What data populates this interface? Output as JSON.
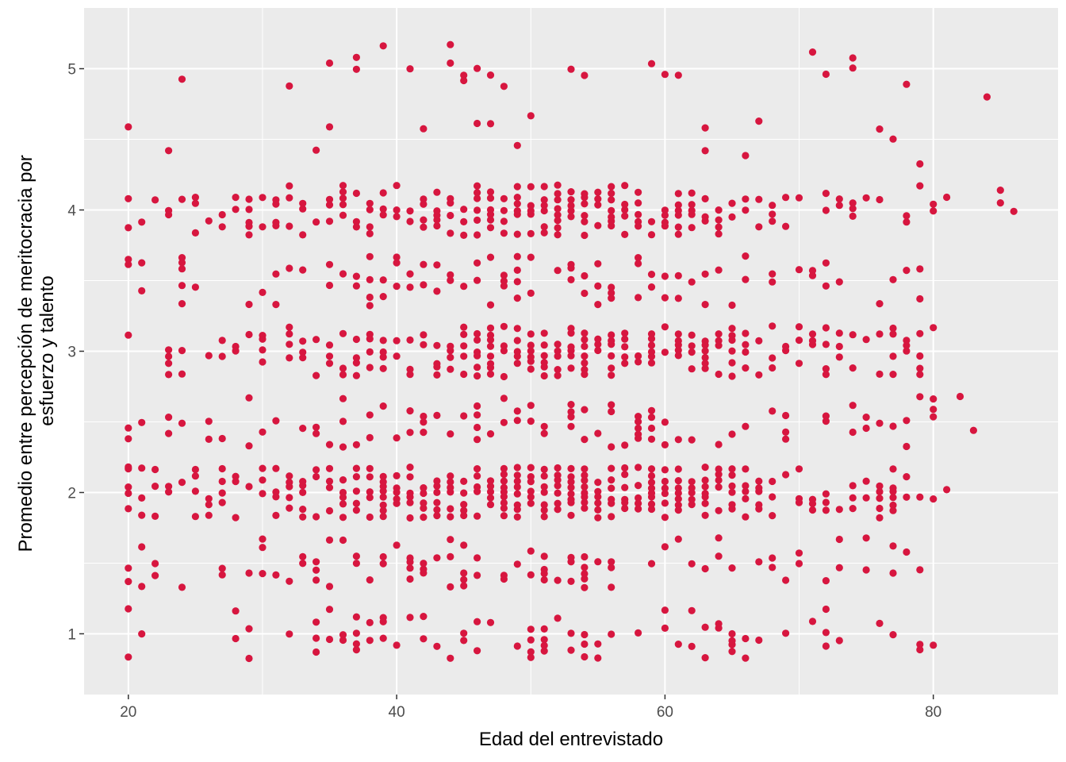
{
  "chart_data": {
    "type": "scatter",
    "title": "",
    "xlabel": "Edad del entrevistado",
    "ylabel_lines": [
      "Promedio entre percepción de meritocracia por",
      "esfuerzo y talento"
    ],
    "xlim": [
      16.7,
      89.3
    ],
    "ylim": [
      0.57,
      5.43
    ],
    "x_ticks": [
      20,
      40,
      60,
      80
    ],
    "x_tick_labels": [
      "20",
      "40",
      "60",
      "80"
    ],
    "y_ticks": [
      1,
      2,
      3,
      4,
      5
    ],
    "y_tick_labels": [
      "1",
      "2",
      "3",
      "4",
      "5"
    ],
    "grid": true,
    "legend": "none",
    "point_color": "#d7163f",
    "panel_color": "#ebebeb",
    "grid_color": "#ffffff",
    "point_generation": {
      "seed": 20240611,
      "age_range": [
        20,
        80
      ],
      "age_weight_peak": 52,
      "jitter": 0.2,
      "bands": [
        {
          "y": 1.0,
          "density": 0.25
        },
        {
          "y": 1.5,
          "density": 0.3
        },
        {
          "y": 2.0,
          "density": 1.0
        },
        {
          "y": 2.5,
          "density": 0.35
        },
        {
          "y": 3.0,
          "density": 0.75
        },
        {
          "y": 3.5,
          "density": 0.3
        },
        {
          "y": 4.0,
          "density": 0.7
        },
        {
          "y": 4.5,
          "density": 0.07
        },
        {
          "y": 5.0,
          "density": 0.07
        }
      ]
    },
    "outliers": [
      {
        "x": 20,
        "y": 1.37
      },
      {
        "x": 20,
        "y": 2.18
      },
      {
        "x": 20,
        "y": 2.38
      },
      {
        "x": 20,
        "y": 3.65
      },
      {
        "x": 20,
        "y": 4.08
      },
      {
        "x": 81,
        "y": 2.02
      },
      {
        "x": 81,
        "y": 4.09
      },
      {
        "x": 82,
        "y": 2.68
      },
      {
        "x": 83,
        "y": 2.44
      },
      {
        "x": 84,
        "y": 4.8
      },
      {
        "x": 85,
        "y": 4.05
      },
      {
        "x": 85,
        "y": 4.14
      },
      {
        "x": 86,
        "y": 3.99
      }
    ]
  }
}
